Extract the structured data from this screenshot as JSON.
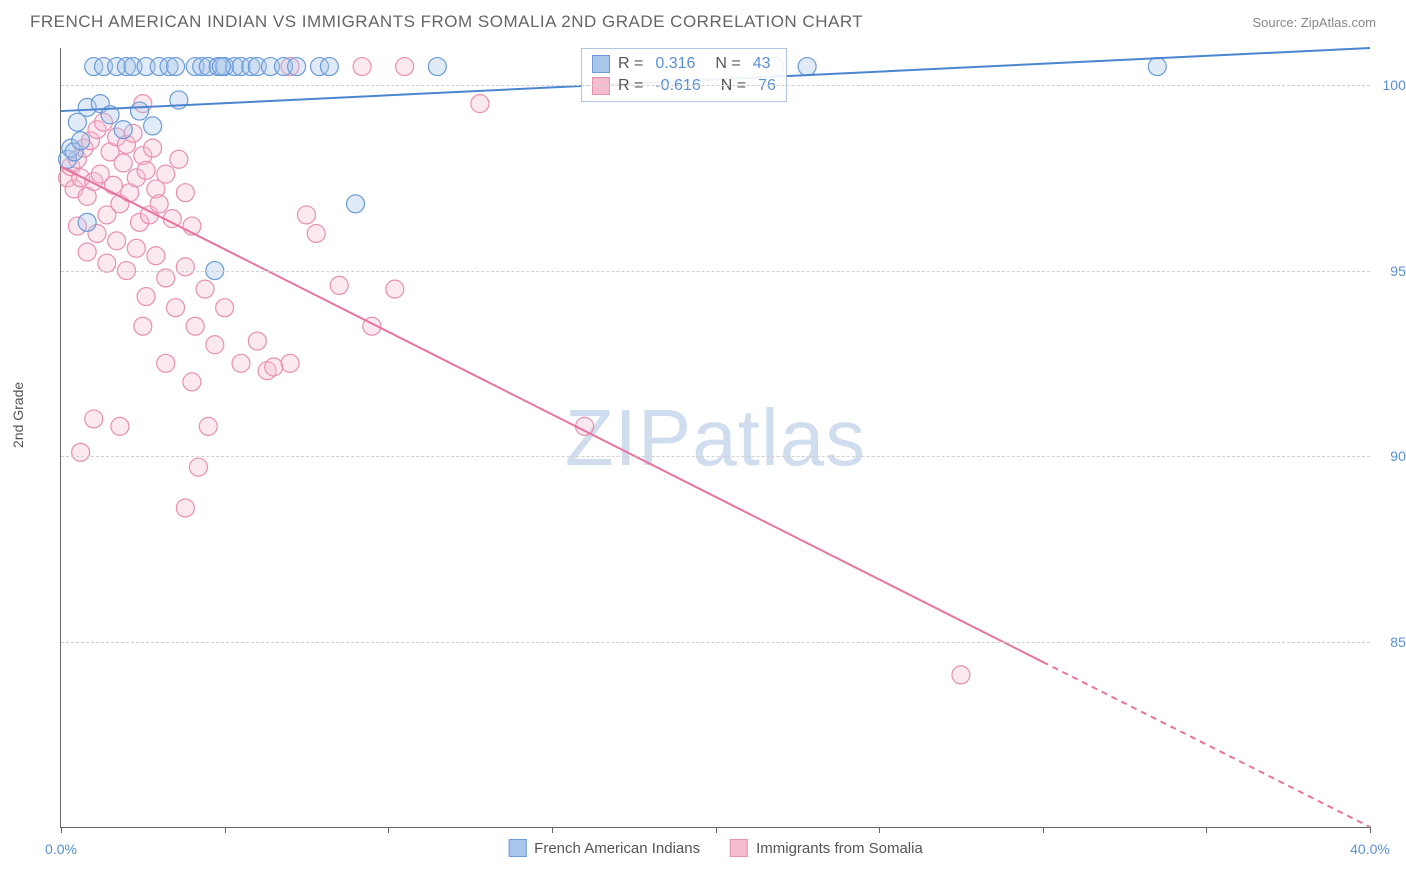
{
  "header": {
    "title": "FRENCH AMERICAN INDIAN VS IMMIGRANTS FROM SOMALIA 2ND GRADE CORRELATION CHART",
    "source": "Source: ZipAtlas.com"
  },
  "watermark": {
    "zip": "ZIP",
    "atlas": "atlas"
  },
  "chart": {
    "type": "scatter",
    "y_axis_label": "2nd Grade",
    "xlim": [
      0,
      40
    ],
    "ylim": [
      80,
      101
    ],
    "x_ticks": [
      0,
      5,
      10,
      15,
      20,
      25,
      30,
      35,
      40
    ],
    "x_tick_labels": {
      "0": "0.0%",
      "40": "40.0%"
    },
    "y_ticks": [
      85,
      90,
      95,
      100
    ],
    "y_tick_labels": {
      "85": "85.0%",
      "90": "90.0%",
      "95": "95.0%",
      "100": "100.0%"
    },
    "grid_color": "#d0d0d0",
    "axis_color": "#666666",
    "background_color": "#ffffff",
    "marker_radius": 9,
    "marker_fill_opacity": 0.35,
    "marker_stroke_width": 1.2,
    "line_width": 2,
    "series": {
      "blue": {
        "label": "French American Indians",
        "fill": "#a8c5ea",
        "stroke": "#6a9bd8",
        "line_color": "#4a85d0",
        "r_value": "0.316",
        "n_value": "43",
        "trend": {
          "x1": 0,
          "y1": 99.3,
          "x2": 40,
          "y2": 101.0
        },
        "points": [
          [
            0.2,
            98.0
          ],
          [
            0.3,
            98.3
          ],
          [
            0.4,
            98.2
          ],
          [
            0.5,
            99.0
          ],
          [
            0.6,
            98.5
          ],
          [
            0.8,
            99.4
          ],
          [
            1.0,
            100.5
          ],
          [
            1.2,
            99.5
          ],
          [
            1.3,
            100.5
          ],
          [
            1.5,
            99.2
          ],
          [
            1.7,
            100.5
          ],
          [
            1.9,
            98.8
          ],
          [
            2.0,
            100.5
          ],
          [
            2.2,
            100.5
          ],
          [
            2.4,
            99.3
          ],
          [
            2.6,
            100.5
          ],
          [
            2.8,
            98.9
          ],
          [
            3.0,
            100.5
          ],
          [
            3.3,
            100.5
          ],
          [
            3.5,
            100.5
          ],
          [
            3.6,
            99.6
          ],
          [
            4.1,
            100.5
          ],
          [
            4.3,
            100.5
          ],
          [
            4.5,
            100.5
          ],
          [
            4.8,
            100.5
          ],
          [
            5.0,
            100.5
          ],
          [
            5.3,
            100.5
          ],
          [
            5.5,
            100.5
          ],
          [
            5.8,
            100.5
          ],
          [
            6.0,
            100.5
          ],
          [
            0.8,
            96.3
          ],
          [
            6.4,
            100.5
          ],
          [
            6.8,
            100.5
          ],
          [
            7.2,
            100.5
          ],
          [
            7.9,
            100.5
          ],
          [
            8.2,
            100.5
          ],
          [
            9.0,
            96.8
          ],
          [
            11.5,
            100.5
          ],
          [
            4.7,
            95.0
          ],
          [
            21.8,
            100.5
          ],
          [
            22.8,
            100.5
          ],
          [
            33.5,
            100.5
          ],
          [
            4.9,
            100.5
          ]
        ]
      },
      "pink": {
        "label": "Immigrants from Somalia",
        "fill": "#f5bcd0",
        "stroke": "#e88fb0",
        "line_color": "#e8739f",
        "r_value": "-0.616",
        "n_value": "76",
        "trend": {
          "x1": 0,
          "y1": 97.8,
          "x2": 40,
          "y2": 80.0
        },
        "trend_solid_end_x": 30,
        "points": [
          [
            0.2,
            97.5
          ],
          [
            0.3,
            97.8
          ],
          [
            0.4,
            97.2
          ],
          [
            0.5,
            98.0
          ],
          [
            0.6,
            97.5
          ],
          [
            0.7,
            98.3
          ],
          [
            0.8,
            97.0
          ],
          [
            0.9,
            98.5
          ],
          [
            1.0,
            97.4
          ],
          [
            1.1,
            98.8
          ],
          [
            1.2,
            97.6
          ],
          [
            1.3,
            99.0
          ],
          [
            1.4,
            96.5
          ],
          [
            1.5,
            98.2
          ],
          [
            1.6,
            97.3
          ],
          [
            1.7,
            98.6
          ],
          [
            1.8,
            96.8
          ],
          [
            1.9,
            97.9
          ],
          [
            2.0,
            98.4
          ],
          [
            2.1,
            97.1
          ],
          [
            2.2,
            98.7
          ],
          [
            2.3,
            97.5
          ],
          [
            2.4,
            96.3
          ],
          [
            2.5,
            98.1
          ],
          [
            2.6,
            97.7
          ],
          [
            2.7,
            96.5
          ],
          [
            2.8,
            98.3
          ],
          [
            2.9,
            97.2
          ],
          [
            3.0,
            96.8
          ],
          [
            3.2,
            97.6
          ],
          [
            3.4,
            96.4
          ],
          [
            3.6,
            98.0
          ],
          [
            3.8,
            97.1
          ],
          [
            4.0,
            96.2
          ],
          [
            0.5,
            96.2
          ],
          [
            0.8,
            95.5
          ],
          [
            1.1,
            96.0
          ],
          [
            1.4,
            95.2
          ],
          [
            1.7,
            95.8
          ],
          [
            2.0,
            95.0
          ],
          [
            2.3,
            95.6
          ],
          [
            2.6,
            94.3
          ],
          [
            2.9,
            95.4
          ],
          [
            3.2,
            94.8
          ],
          [
            3.5,
            94.0
          ],
          [
            3.8,
            95.1
          ],
          [
            4.1,
            93.5
          ],
          [
            4.4,
            94.5
          ],
          [
            4.7,
            93.0
          ],
          [
            5.0,
            94.0
          ],
          [
            1.0,
            91.0
          ],
          [
            0.6,
            90.1
          ],
          [
            1.8,
            90.8
          ],
          [
            2.5,
            93.5
          ],
          [
            3.2,
            92.5
          ],
          [
            4.0,
            92.0
          ],
          [
            4.5,
            90.8
          ],
          [
            5.5,
            92.5
          ],
          [
            6.3,
            92.3
          ],
          [
            7.0,
            92.5
          ],
          [
            7.5,
            96.5
          ],
          [
            7.8,
            96.0
          ],
          [
            8.5,
            94.6
          ],
          [
            9.5,
            93.5
          ],
          [
            10.2,
            94.5
          ],
          [
            7.0,
            100.5
          ],
          [
            9.2,
            100.5
          ],
          [
            10.5,
            100.5
          ],
          [
            16.0,
            90.8
          ],
          [
            3.8,
            88.6
          ],
          [
            4.2,
            89.7
          ],
          [
            6.0,
            93.1
          ],
          [
            6.5,
            92.4
          ],
          [
            27.5,
            84.1
          ],
          [
            12.8,
            99.5
          ],
          [
            2.5,
            99.5
          ]
        ]
      }
    }
  },
  "legend_labels": {
    "r": "R =",
    "n": "N ="
  }
}
